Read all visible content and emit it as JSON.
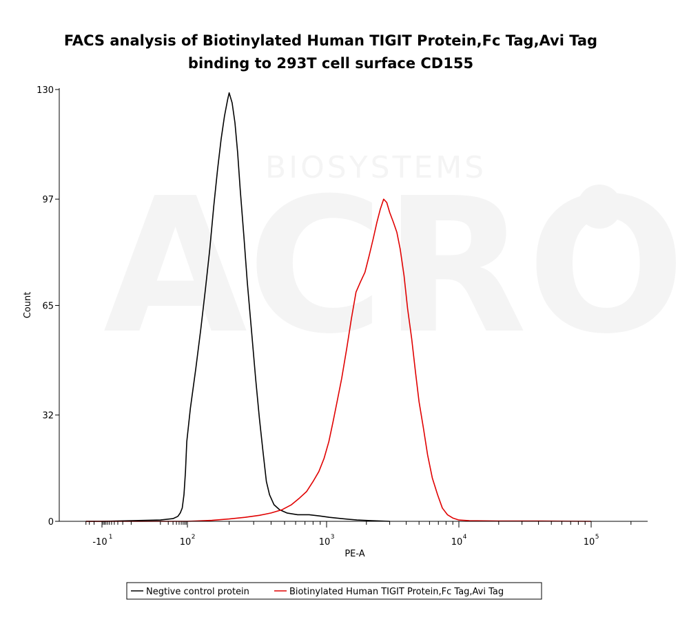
{
  "chart_data": {
    "type": "line",
    "title": "FACS analysis of Biotinylated Human TIGIT Protein,Fc Tag,Avi Tag",
    "title_line2": "binding to 293T cell surface CD155",
    "xlabel": "PE-A",
    "ylabel": "Count",
    "x_scale": "biexponential (log)",
    "ylim": [
      0,
      130
    ],
    "y_ticks": [
      {
        "value": 0,
        "label": "0"
      },
      {
        "value": 32,
        "label": "32"
      },
      {
        "value": 65,
        "label": "65"
      },
      {
        "value": 97,
        "label": "97"
      },
      {
        "value": 130,
        "label": "130"
      }
    ],
    "x_ticks": [
      {
        "value": -10,
        "base": "-10",
        "exp": "1"
      },
      {
        "value": 100,
        "base": "10",
        "exp": "2"
      },
      {
        "value": 1000,
        "base": "10",
        "exp": "3"
      },
      {
        "value": 10000,
        "base": "10",
        "exp": "4"
      },
      {
        "value": 100000,
        "base": "10",
        "exp": "5"
      }
    ],
    "grid": false,
    "legend_position": "bottom",
    "watermark": {
      "main": "ACRO",
      "sub": "BIOSYSTEMS"
    },
    "series": [
      {
        "name": "Negtive control protein",
        "color": "#000000",
        "points": [
          [
            -40,
            0
          ],
          [
            -10,
            0
          ],
          [
            10,
            0.4
          ],
          [
            30,
            0.8
          ],
          [
            45,
            1.5
          ],
          [
            55,
            2.5
          ],
          [
            65,
            4
          ],
          [
            75,
            8
          ],
          [
            85,
            15
          ],
          [
            95,
            24
          ],
          [
            105,
            34
          ],
          [
            115,
            46
          ],
          [
            125,
            58
          ],
          [
            135,
            70
          ],
          [
            145,
            82
          ],
          [
            155,
            95
          ],
          [
            165,
            106
          ],
          [
            175,
            115
          ],
          [
            185,
            122
          ],
          [
            195,
            127
          ],
          [
            200,
            129
          ],
          [
            210,
            126
          ],
          [
            220,
            120
          ],
          [
            230,
            111
          ],
          [
            240,
            100
          ],
          [
            255,
            86
          ],
          [
            270,
            72
          ],
          [
            290,
            57
          ],
          [
            310,
            43
          ],
          [
            330,
            31
          ],
          [
            350,
            21
          ],
          [
            370,
            12
          ],
          [
            390,
            8
          ],
          [
            420,
            5
          ],
          [
            460,
            3.5
          ],
          [
            520,
            2.5
          ],
          [
            620,
            2
          ],
          [
            750,
            2
          ],
          [
            900,
            1.6
          ],
          [
            1050,
            1.2
          ],
          [
            1300,
            0.8
          ],
          [
            1700,
            0.4
          ],
          [
            2200,
            0.2
          ],
          [
            3000,
            0
          ]
        ]
      },
      {
        "name": "Biotinylated Human TIGIT Protein,Fc Tag,Avi Tag",
        "color": "#e00000",
        "points": [
          [
            -40,
            0
          ],
          [
            100,
            0
          ],
          [
            150,
            0.3
          ],
          [
            200,
            0.7
          ],
          [
            260,
            1.2
          ],
          [
            330,
            1.8
          ],
          [
            400,
            2.5
          ],
          [
            480,
            3.5
          ],
          [
            560,
            5
          ],
          [
            640,
            7
          ],
          [
            720,
            9
          ],
          [
            800,
            12
          ],
          [
            880,
            15
          ],
          [
            960,
            19
          ],
          [
            1040,
            24
          ],
          [
            1120,
            30
          ],
          [
            1200,
            36
          ],
          [
            1300,
            43
          ],
          [
            1420,
            52
          ],
          [
            1540,
            61
          ],
          [
            1670,
            69
          ],
          [
            1800,
            72
          ],
          [
            1950,
            75
          ],
          [
            2100,
            80
          ],
          [
            2250,
            85
          ],
          [
            2400,
            90
          ],
          [
            2550,
            94
          ],
          [
            2700,
            97
          ],
          [
            2850,
            96
          ],
          [
            3000,
            93
          ],
          [
            3200,
            90
          ],
          [
            3400,
            87
          ],
          [
            3600,
            82
          ],
          [
            3850,
            74
          ],
          [
            4100,
            64
          ],
          [
            4400,
            55
          ],
          [
            4700,
            45
          ],
          [
            5000,
            36
          ],
          [
            5400,
            28
          ],
          [
            5800,
            20
          ],
          [
            6300,
            13
          ],
          [
            6900,
            8
          ],
          [
            7500,
            4
          ],
          [
            8200,
            2
          ],
          [
            9000,
            1
          ],
          [
            10000,
            0.4
          ],
          [
            12000,
            0.2
          ],
          [
            20000,
            0.1
          ],
          [
            40000,
            0.1
          ],
          [
            100000,
            0
          ]
        ]
      }
    ]
  }
}
